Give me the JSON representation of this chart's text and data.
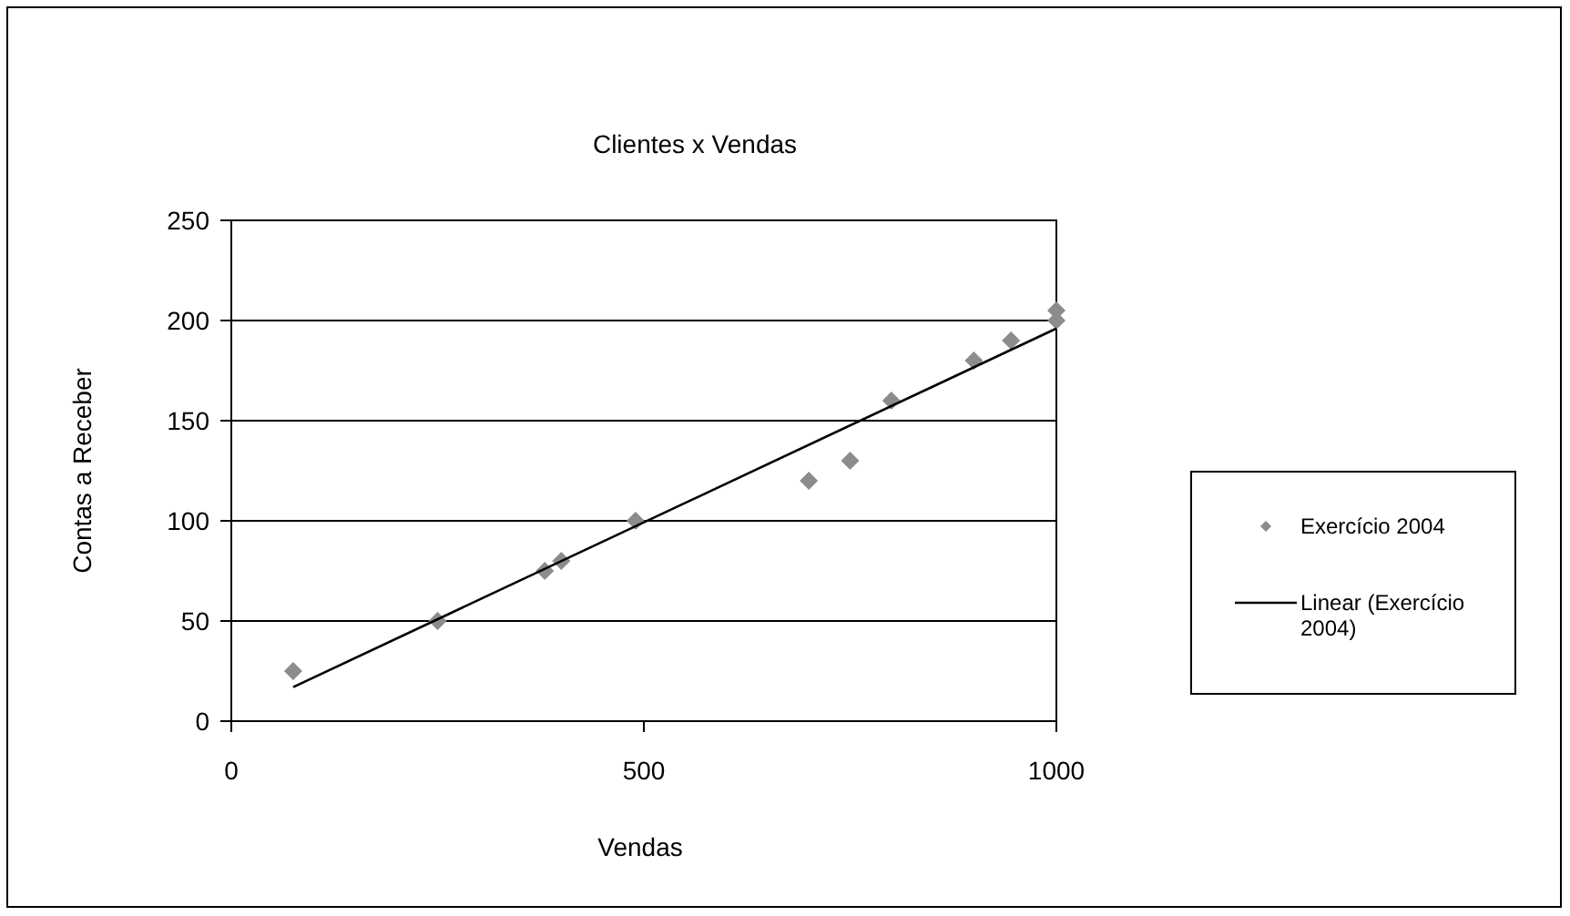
{
  "chart_data": {
    "type": "scatter",
    "title": "Clientes x Vendas",
    "xlabel": "Vendas",
    "ylabel": "Contas a Receber",
    "xlim": [
      0,
      1000
    ],
    "xticks": [
      0,
      500,
      1000
    ],
    "ylim": [
      0,
      250
    ],
    "yticks": [
      0,
      50,
      100,
      150,
      200,
      250
    ],
    "grid": "y",
    "legend": "right",
    "series": [
      {
        "name": "Exercício 2004",
        "marker": "diamond",
        "color": "#8c8c8c",
        "x": [
          75,
          250,
          380,
          400,
          490,
          700,
          750,
          800,
          900,
          945,
          1000,
          1000
        ],
        "values": [
          25,
          50,
          75,
          80,
          100,
          120,
          130,
          160,
          180,
          190,
          200,
          205
        ]
      },
      {
        "name": "Linear (Exercício 2004)",
        "type": "line",
        "marker": "none",
        "line_style": "solid",
        "color": "#000000",
        "x": [
          75,
          1000
        ],
        "values": [
          17,
          196
        ]
      }
    ]
  }
}
